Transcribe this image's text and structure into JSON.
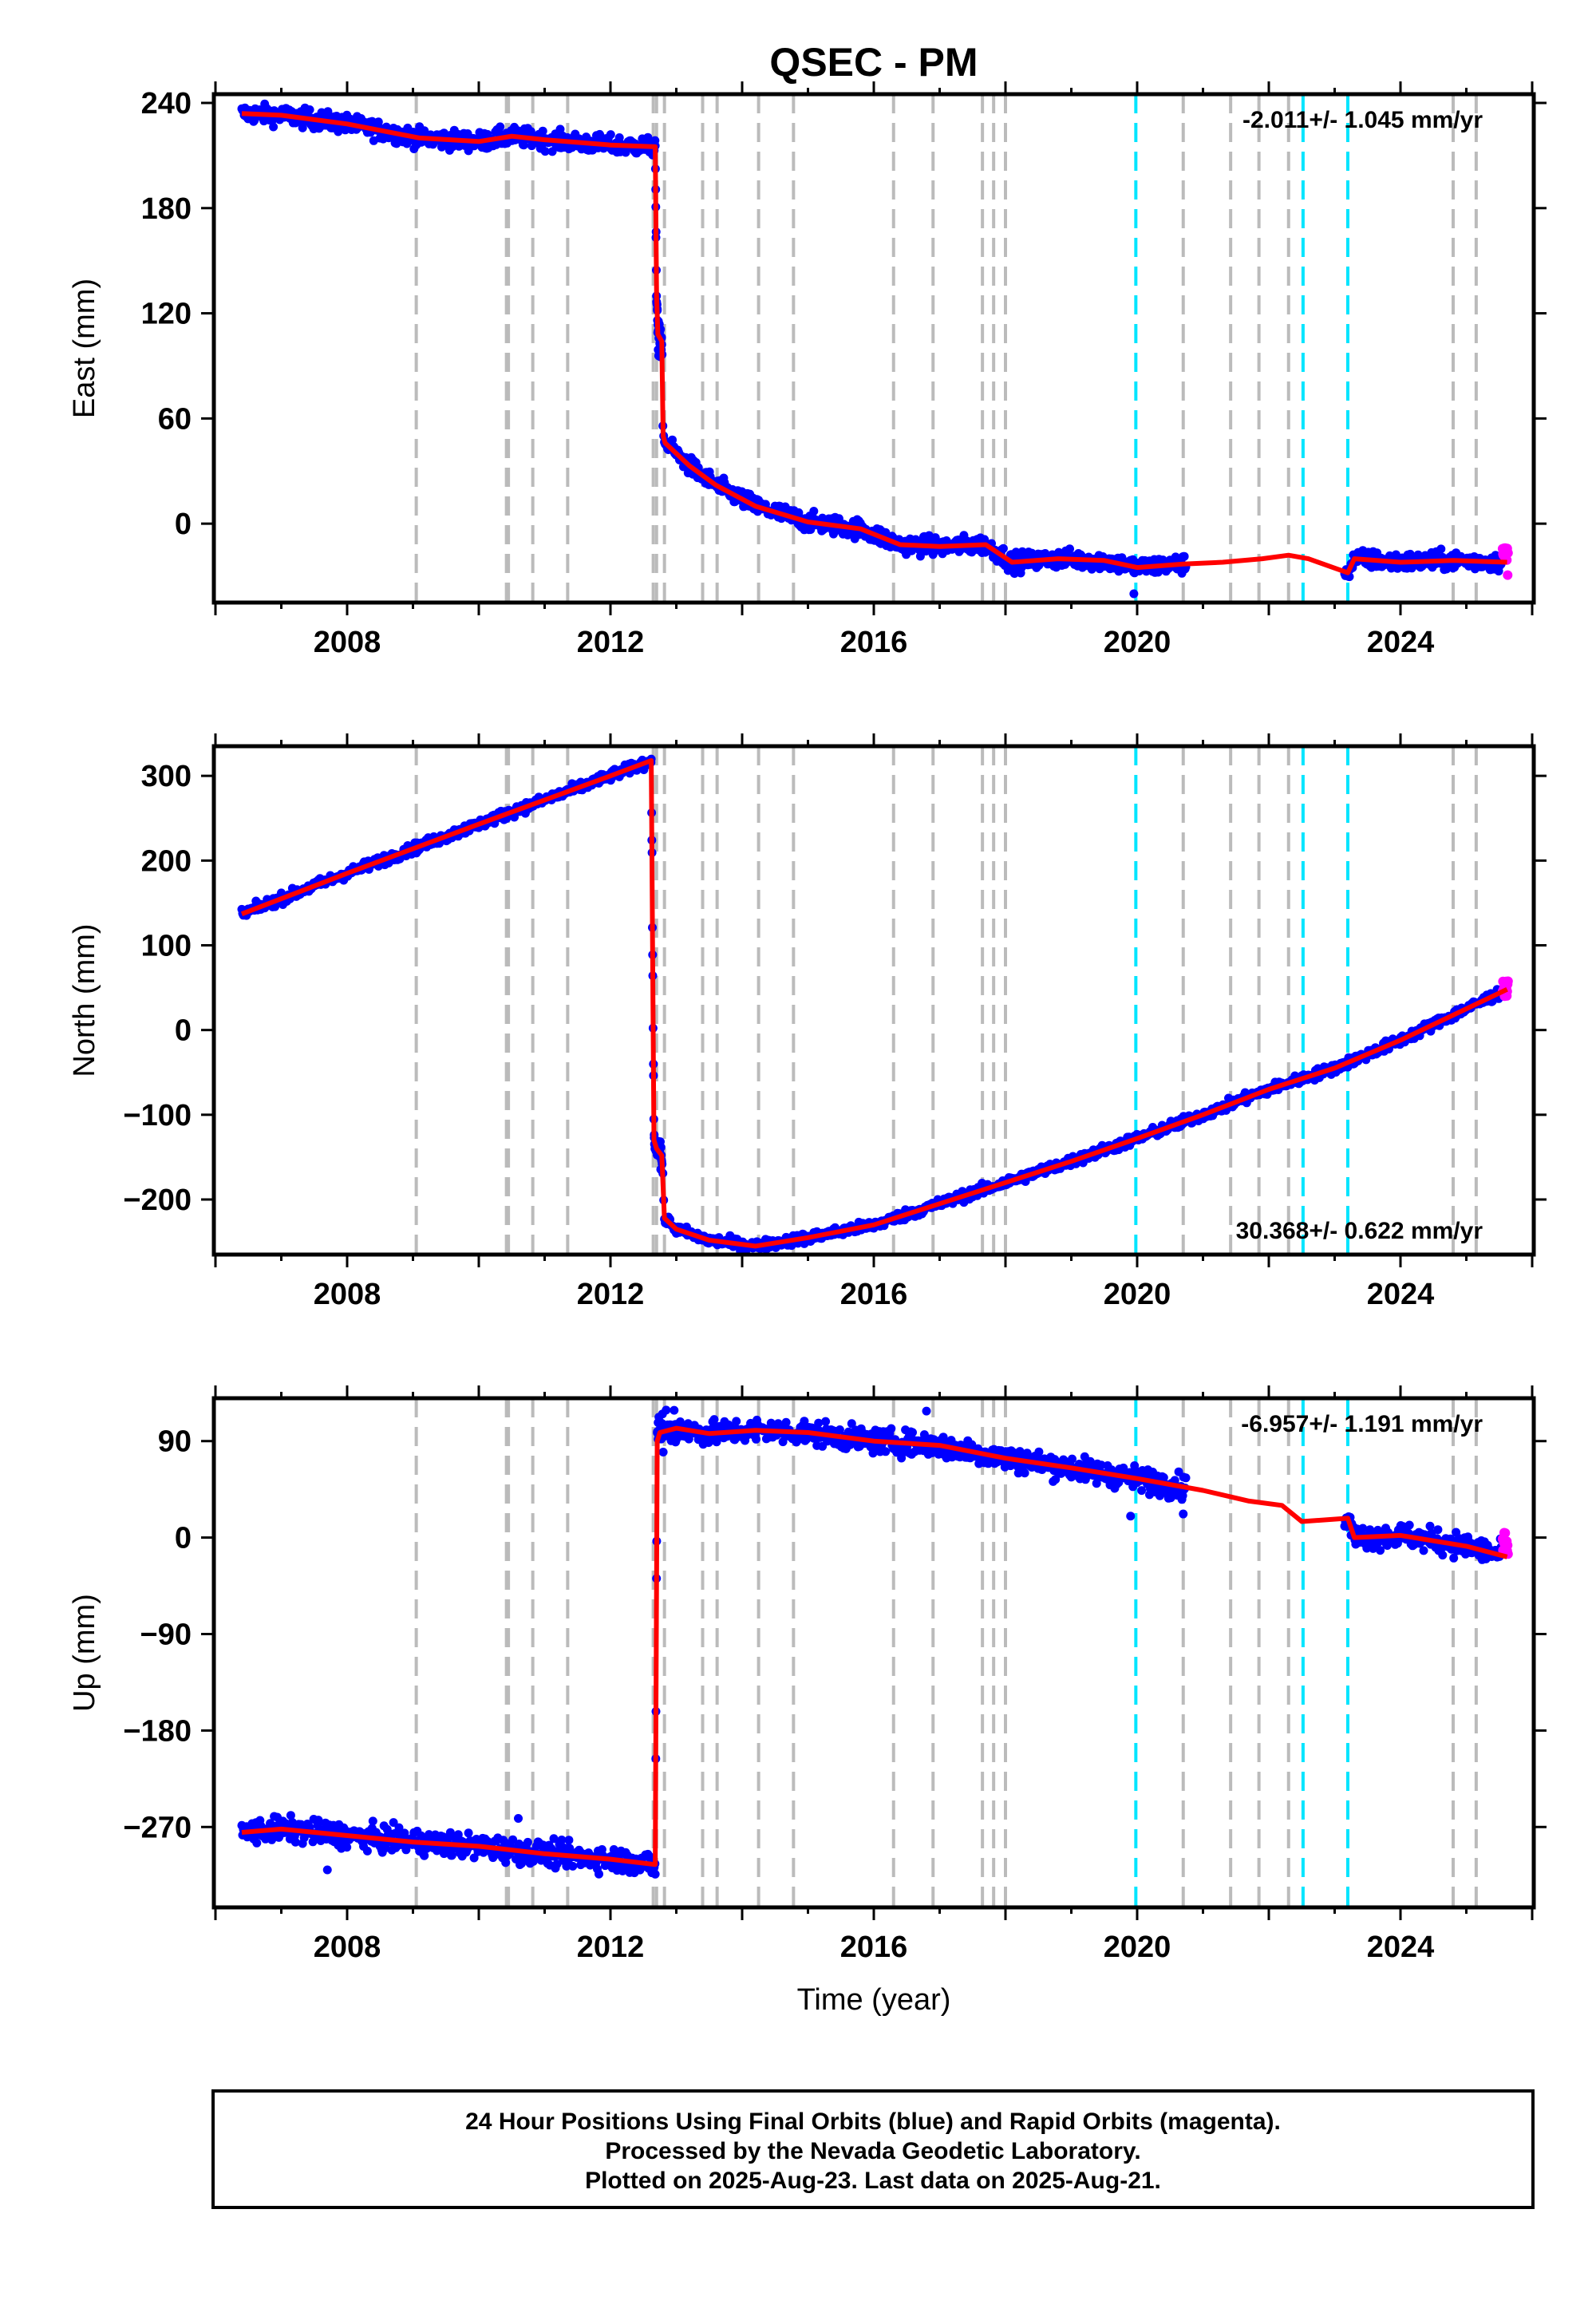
{
  "chart_data": {
    "type": "scatter",
    "title": "QSEC - PM",
    "xlabel": "Time (year)",
    "xlim": [
      2006.0,
      2026.0
    ],
    "x_ticks": [
      2008,
      2012,
      2016,
      2020,
      2024
    ],
    "x_tick_labels": [
      "2008",
      "2012",
      "2016",
      "2020",
      "2024"
    ],
    "grid": false,
    "equipment_change_lines": [
      2009.05,
      2010.42,
      2010.45,
      2010.82,
      2011.35,
      2012.65,
      2012.7,
      2012.82,
      2013.4,
      2013.62,
      2014.25,
      2014.78,
      2016.3,
      2016.9,
      2017.65,
      2017.82,
      2018.0,
      2020.7,
      2021.42,
      2021.85,
      2022.3,
      2024.8,
      2025.15
    ],
    "earthquake_lines": [
      2019.98,
      2022.52,
      2023.2
    ],
    "series_colors": {
      "final": "#0000ff",
      "rapid": "#ff00ff",
      "model": "#ff0000",
      "equipment": "#bbbbbb",
      "earthquake": "#00e5ff"
    },
    "panels": [
      {
        "ylabel": "East (mm)",
        "ylim": [
          -45,
          245
        ],
        "y_ticks": [
          240,
          180,
          120,
          60,
          0
        ],
        "y_tick_labels": [
          "240",
          "180",
          "120",
          "60",
          "0"
        ],
        "rate_label": "-2.011+/- 1.045 mm/yr",
        "rate_position": "top-right",
        "gaps": [
          [
            2020.75,
            2023.15
          ]
        ],
        "model_x": [
          2006.4,
          2007.0,
          2008.0,
          2009.1,
          2010.0,
          2010.5,
          2011.0,
          2012.0,
          2012.68,
          2012.7,
          2012.72,
          2012.78,
          2012.8,
          2012.83,
          2013.2,
          2013.6,
          2014.2,
          2015.0,
          2015.8,
          2016.4,
          2017.0,
          2017.7,
          2018.1,
          2018.8,
          2019.5,
          2020.0,
          2020.7,
          2021.3,
          2021.9,
          2022.3,
          2022.6,
          2023.2,
          2023.3,
          2024.0,
          2024.8,
          2025.62
        ],
        "model_y": [
          234,
          233,
          228,
          220,
          218,
          221,
          219,
          216,
          215,
          130,
          108,
          104,
          50,
          46,
          33,
          22,
          10,
          1,
          -3,
          -12,
          -13,
          -12,
          -22,
          -20,
          -21,
          -25,
          -23,
          -22,
          -20,
          -18,
          -20,
          -28,
          -20,
          -22,
          -21,
          -22
        ],
        "final_x_range": [
          2006.4,
          2025.55
        ],
        "rapid_x_range": [
          2025.55,
          2025.64
        ],
        "outliers": [
          {
            "x": 2019.95,
            "y": -40
          }
        ]
      },
      {
        "ylabel": "North (mm)",
        "ylim": [
          -265,
          335
        ],
        "y_ticks": [
          300,
          200,
          100,
          0,
          -100,
          -200
        ],
        "y_tick_labels": [
          "300",
          "200",
          "100",
          "0",
          "−100",
          "−200"
        ],
        "rate_label": "30.368+/- 0.622 mm/yr",
        "rate_position": "bottom-right",
        "gaps": [],
        "model_x": [
          2006.4,
          2008.0,
          2010.0,
          2012.0,
          2012.62,
          2012.66,
          2012.7,
          2012.78,
          2012.82,
          2013.0,
          2013.5,
          2014.2,
          2015.0,
          2016.0,
          2017.0,
          2018.0,
          2019.0,
          2020.0,
          2021.0,
          2022.0,
          2023.0,
          2024.0,
          2025.62
        ],
        "model_y": [
          137,
          185,
          243,
          300,
          318,
          -130,
          -140,
          -148,
          -222,
          -235,
          -248,
          -255,
          -245,
          -230,
          -205,
          -180,
          -155,
          -128,
          -100,
          -70,
          -45,
          -12,
          48
        ],
        "final_x_range": [
          2006.4,
          2025.55
        ],
        "rapid_x_range": [
          2025.55,
          2025.64
        ],
        "outliers": []
      },
      {
        "ylabel": "Up (mm)",
        "ylim": [
          -345,
          130
        ],
        "y_ticks": [
          90,
          0,
          -90,
          -180,
          -270
        ],
        "y_tick_labels": [
          "90",
          "0",
          "−90",
          "−180",
          "−270"
        ],
        "rate_label": "-6.957+/- 1.191 mm/yr",
        "rate_position": "top-right",
        "gaps": [
          [
            2020.75,
            2023.15
          ]
        ],
        "model_x": [
          2006.4,
          2007.0,
          2008.0,
          2009.0,
          2010.0,
          2011.0,
          2012.0,
          2012.68,
          2012.71,
          2012.75,
          2013.0,
          2013.5,
          2014.2,
          2015.0,
          2016.0,
          2017.0,
          2018.0,
          2019.0,
          2020.0,
          2021.0,
          2021.7,
          2022.2,
          2022.5,
          2023.2,
          2023.3,
          2024.0,
          2025.0,
          2025.62
        ],
        "model_y": [
          -275,
          -272,
          -278,
          -284,
          -288,
          -295,
          -300,
          -305,
          90,
          98,
          102,
          97,
          100,
          98,
          90,
          86,
          74,
          65,
          55,
          44,
          34,
          30,
          15,
          18,
          0,
          2,
          -8,
          -18
        ],
        "final_x_range": [
          2006.4,
          2025.55
        ],
        "rapid_x_range": [
          2025.55,
          2025.64
        ],
        "outliers": [
          {
            "x": 2007.7,
            "y": -310
          },
          {
            "x": 2010.6,
            "y": -262
          },
          {
            "x": 2019.9,
            "y": 20
          },
          {
            "x": 2020.7,
            "y": 22
          },
          {
            "x": 2016.8,
            "y": 118
          }
        ]
      }
    ]
  },
  "footer": {
    "line1": "24 Hour Positions Using Final Orbits (blue) and Rapid Orbits (magenta).",
    "line2": "Processed by the Nevada Geodetic Laboratory.",
    "line3": "Plotted on 2025-Aug-23. Last data on 2025-Aug-21."
  }
}
